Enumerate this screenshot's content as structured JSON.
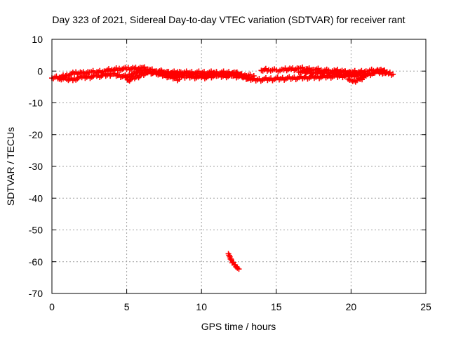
{
  "chart_data": {
    "type": "scatter",
    "title": "Day 323 of 2021, Sidereal Day-to-day VTEC variation (SDTVAR) for receiver rant",
    "xlabel": "GPS time / hours",
    "ylabel": "SDTVAR / TECUs",
    "xlim": [
      0,
      25
    ],
    "ylim": [
      -70,
      10
    ],
    "x_ticks": [
      0,
      5,
      10,
      15,
      20,
      25
    ],
    "y_ticks": [
      10,
      0,
      -10,
      -20,
      -30,
      -40,
      -50,
      -60,
      -70
    ],
    "grid": true,
    "marker": "plus",
    "series_color": "#ff0000",
    "series": [
      {
        "segments": [
          {
            "x": [
              0.0,
              0.5,
              1.0,
              1.5,
              2.0,
              2.5,
              3.0,
              3.5,
              4.0,
              4.5,
              5.0,
              5.5,
              6.0,
              6.5,
              7.0,
              7.5,
              8.0,
              8.5,
              9.0,
              9.5,
              10.0,
              10.5,
              11.0,
              11.5,
              12.0,
              12.5,
              13.0,
              13.5
            ],
            "y": [
              -2.2,
              -2.0,
              -1.2,
              -0.8,
              -0.6,
              -0.4,
              -0.3,
              0.0,
              0.4,
              0.8,
              0.6,
              0.8,
              1.0,
              0.5,
              0.0,
              -0.3,
              -0.6,
              -0.8,
              -0.9,
              -1.1,
              -1.4,
              -1.2,
              -0.8,
              -0.9,
              -1.0,
              -1.2,
              -1.5,
              -1.5
            ]
          },
          {
            "x": [
              14.0,
              14.5,
              15.0,
              15.5,
              16.0,
              16.5,
              17.0,
              17.5,
              18.0,
              18.5,
              19.0,
              19.5,
              20.0,
              20.5,
              21.0,
              21.5,
              22.0,
              22.5,
              22.8
            ],
            "y": [
              0.2,
              0.4,
              0.3,
              0.4,
              0.6,
              0.8,
              0.7,
              0.5,
              0.3,
              0.2,
              0.1,
              -0.2,
              -0.4,
              -0.3,
              0.0,
              0.1,
              -0.3,
              -0.8,
              -1.0
            ]
          },
          {
            "x": [
              0.5,
              1.0,
              1.5,
              2.0,
              3.0,
              4.0,
              5.0,
              6.0,
              7.0,
              8.0,
              9.0,
              10.0,
              11.0,
              12.0,
              13.0
            ],
            "y": [
              -2.5,
              -2.6,
              -2.4,
              -2.0,
              -1.6,
              -1.0,
              -1.8,
              0.3,
              -0.8,
              -1.5,
              -1.7,
              -2.0,
              -1.6,
              -1.5,
              -1.8
            ]
          },
          {
            "x": [
              7.0,
              7.3,
              7.6,
              7.9,
              8.2,
              8.5
            ],
            "y": [
              -0.5,
              -0.9,
              -1.4,
              -1.8,
              -2.2,
              -2.6
            ]
          },
          {
            "x": [
              16.5,
              17.5,
              18.5,
              19.5,
              20.3
            ],
            "y": [
              -0.3,
              -0.4,
              -0.5,
              -0.6,
              -0.8
            ]
          },
          {
            "x": [
              19.8,
              20.0,
              20.2,
              20.4,
              20.6,
              20.8,
              21.0
            ],
            "y": [
              -2.5,
              -2.8,
              -3.0,
              -2.9,
              -2.6,
              -2.0,
              -1.5
            ]
          },
          {
            "x": [
              4.9,
              5.0,
              5.1,
              6.4,
              12.3,
              13.3,
              21.0,
              21.5,
              22.0,
              22.4
            ],
            "y": [
              -1.5,
              -2.0,
              -2.8,
              -0.5,
              -0.5,
              -2.8,
              -1.2,
              -0.6,
              0.5,
              -0.4
            ]
          },
          {
            "x": [
              11.8,
              11.9,
              12.0,
              12.1,
              12.2,
              12.3,
              12.4,
              12.5
            ],
            "y": [
              -57.5,
              -58.5,
              -59.5,
              -60.3,
              -61.0,
              -61.6,
              -62.0,
              -62.3
            ]
          }
        ]
      }
    ]
  }
}
